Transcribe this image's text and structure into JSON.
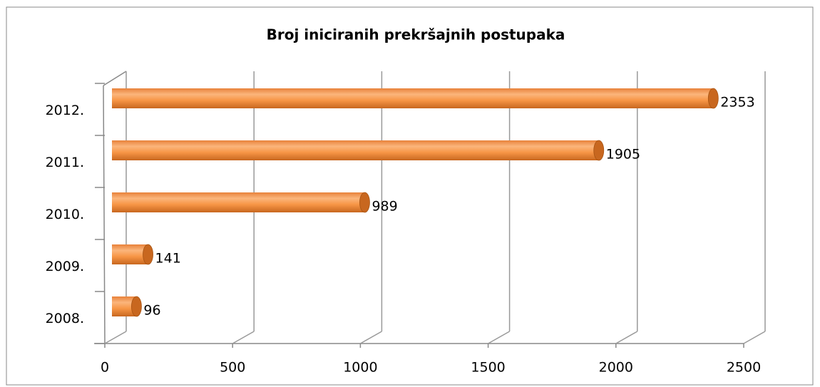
{
  "chart_data": {
    "type": "bar",
    "orientation": "horizontal",
    "title": "Broj iniciranih prekršajnih postupaka",
    "categories": [
      "2008.",
      "2009.",
      "2010.",
      "2011.",
      "2012."
    ],
    "values": [
      96,
      141,
      989,
      1905,
      2353
    ],
    "color": "#f79646",
    "xlim": [
      0,
      2500
    ],
    "xticks": [
      0,
      500,
      1000,
      1500,
      2000,
      2500
    ],
    "grid": true
  }
}
